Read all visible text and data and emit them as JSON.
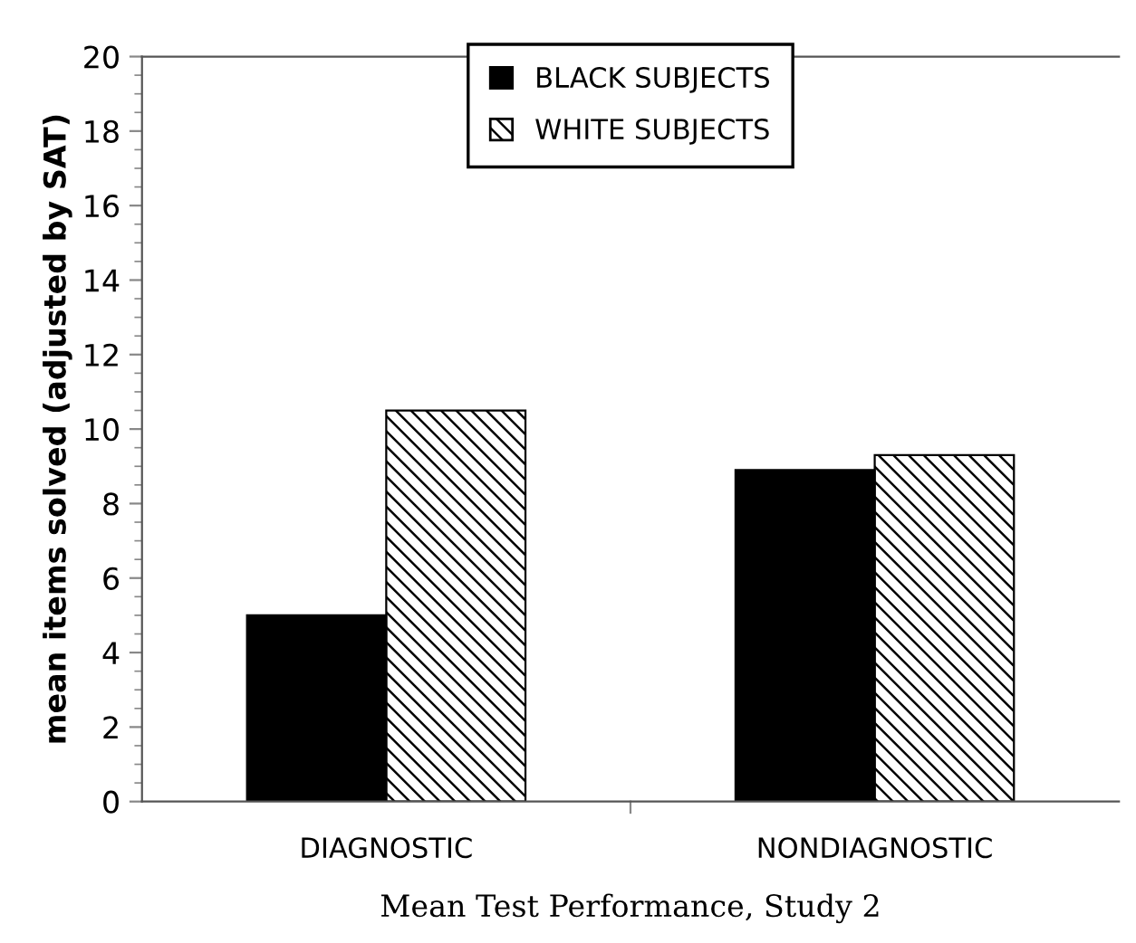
{
  "chart_data": {
    "type": "bar",
    "xlabel": "Mean Test Performance, Study 2",
    "ylabel": "mean items solved (adjusted by SAT)",
    "categories": [
      "DIAGNOSTIC",
      "NONDIAGNOSTIC"
    ],
    "series": [
      {
        "name": "BLACK SUBJECTS",
        "color": "#000000",
        "values": [
          5.0,
          8.9
        ]
      },
      {
        "name": "WHITE SUBJECTS",
        "color": "#000000",
        "values": [
          10.5,
          9.3
        ]
      }
    ],
    "ylim": [
      0,
      20
    ],
    "yticks": [
      0,
      2,
      4,
      6,
      8,
      10,
      12,
      14,
      16,
      18,
      20
    ],
    "grid": false,
    "legend": "top"
  }
}
